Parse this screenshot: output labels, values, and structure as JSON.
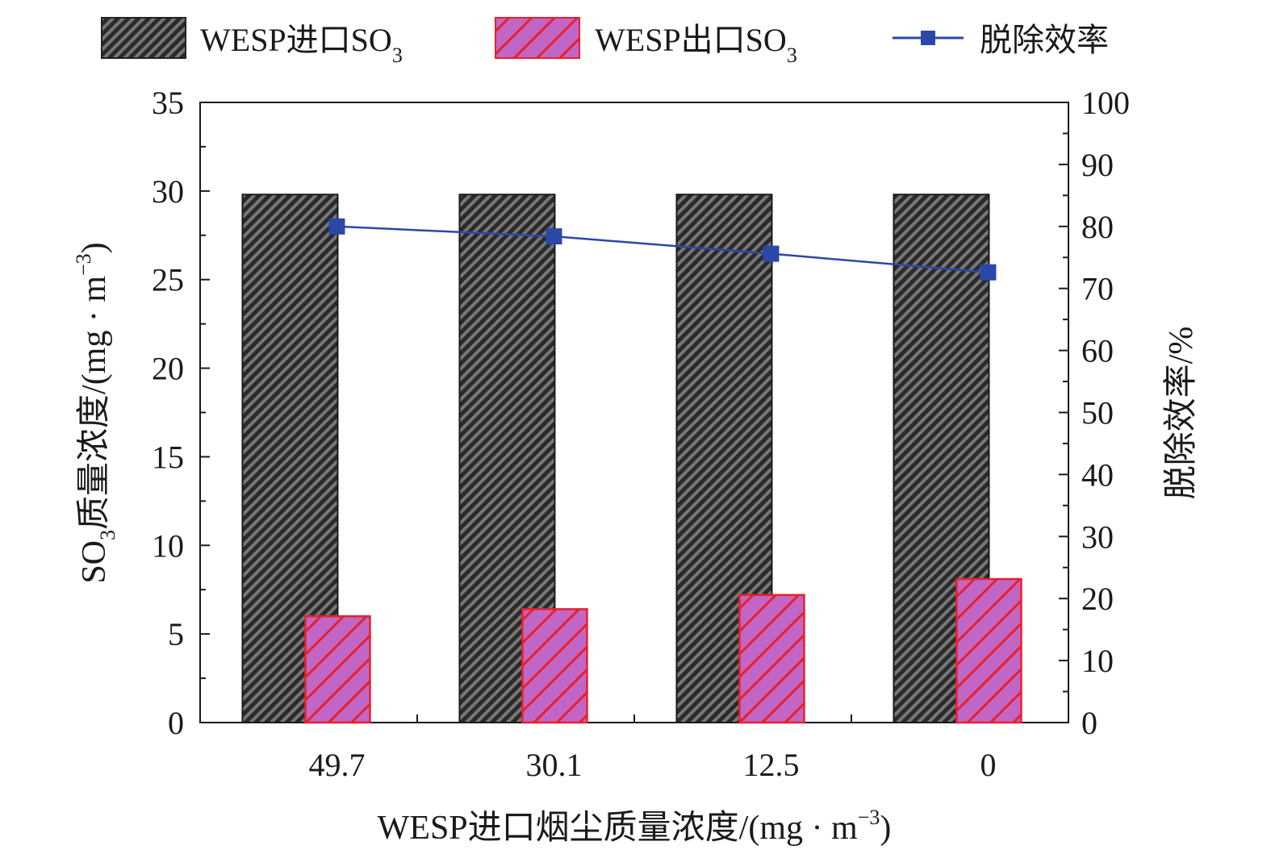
{
  "chart_data": {
    "type": "bar",
    "categories": [
      "49.7",
      "30.1",
      "12.5",
      "0"
    ],
    "series": [
      {
        "name": "WESP进口SO3",
        "axis": "left",
        "values": [
          29.8,
          29.8,
          29.8,
          29.8
        ],
        "color": "#333333",
        "pattern": "dense-hatch"
      },
      {
        "name": "WESP出口SO3",
        "axis": "left",
        "values": [
          6.0,
          6.4,
          7.2,
          8.1
        ],
        "color": "#c060c0",
        "edge": "#e8202a",
        "pattern": "hatch"
      },
      {
        "name": "脱除效率",
        "axis": "right",
        "type": "line",
        "values": [
          80.0,
          78.4,
          75.6,
          72.6
        ],
        "color": "#2a48a8",
        "marker": "square"
      }
    ],
    "legend": {
      "placement": "top",
      "items": [
        {
          "label": "WESP进口SO",
          "sub": "3"
        },
        {
          "label": "WESP出口SO",
          "sub": "3"
        },
        {
          "label": "脱除效率",
          "sub": ""
        }
      ]
    },
    "left_axis": {
      "label_main": "SO",
      "label_sub": "3",
      "label_rest": "质量浓度/(mg · m",
      "label_sup": "−3",
      "label_close": ")",
      "ylim": [
        0,
        35
      ],
      "ticks": [
        "0",
        "5",
        "10",
        "15",
        "20",
        "25",
        "30",
        "35"
      ]
    },
    "right_axis": {
      "label": "脱除效率/%",
      "ylim": [
        0,
        100
      ],
      "ticks": [
        "0",
        "10",
        "20",
        "30",
        "40",
        "50",
        "60",
        "70",
        "80",
        "90",
        "100"
      ]
    },
    "x_axis": {
      "label_main": "WESP进口烟尘质量浓度/(mg · m",
      "label_sup": "−3",
      "label_close": ")"
    },
    "grid": false
  }
}
